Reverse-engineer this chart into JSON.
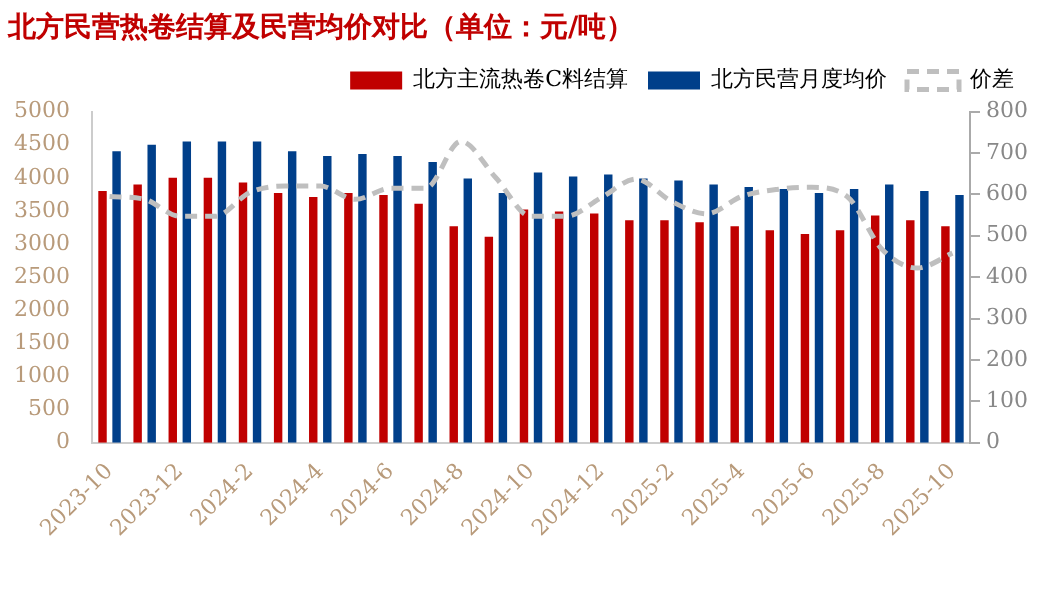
{
  "chart_data": {
    "type": "bar",
    "title": "北方民营热卷结算及民营均价对比（单位：元/吨）",
    "categories": [
      "2023-10",
      null,
      "2023-12",
      null,
      "2024-2",
      null,
      "2024-4",
      null,
      "2024-6",
      null,
      "2024-8",
      null,
      "2024-10",
      null,
      "2024-12",
      null,
      "2025-2",
      null,
      "2025-4",
      null,
      "2025-6",
      null,
      "2025-8",
      null,
      "2025-10"
    ],
    "series": [
      {
        "name": "北方主流热卷C料结算",
        "color": "#c00000",
        "values": [
          3800,
          3900,
          4000,
          4000,
          3930,
          3770,
          3710,
          3770,
          3740,
          3610,
          3270,
          3110,
          3520,
          3490,
          3460,
          3360,
          3360,
          3330,
          3270,
          3210,
          3150,
          3210,
          3430,
          3360,
          3270
        ]
      },
      {
        "name": "北方民营月度均价",
        "color": "#003f8a",
        "values": [
          4400,
          4500,
          4550,
          4550,
          4550,
          4400,
          4330,
          4360,
          4330,
          4240,
          3990,
          3770,
          4080,
          4020,
          4050,
          3990,
          3960,
          3900,
          3860,
          3830,
          3770,
          3830,
          3900,
          3800,
          3740
        ]
      },
      {
        "name": "价差",
        "type": "line",
        "axis": "y2",
        "color": "#bfbfbf",
        "line_style": "dashed",
        "marker": "none",
        "values": [
          595,
          588,
          547,
          547,
          605,
          620,
          620,
          588,
          615,
          615,
          728,
          640,
          547,
          547,
          592,
          637,
          583,
          553,
          595,
          612,
          617,
          595,
          467,
          422,
          458
        ]
      }
    ],
    "ylim": [
      0,
      5000
    ],
    "yticks": [
      0,
      500,
      1000,
      1500,
      2000,
      2500,
      3000,
      3500,
      4000,
      4500,
      5000
    ],
    "y2lim": [
      0,
      800
    ],
    "y2ticks": [
      0,
      100,
      200,
      300,
      400,
      500,
      600,
      700,
      800
    ],
    "legend": "top right",
    "grid": false
  }
}
